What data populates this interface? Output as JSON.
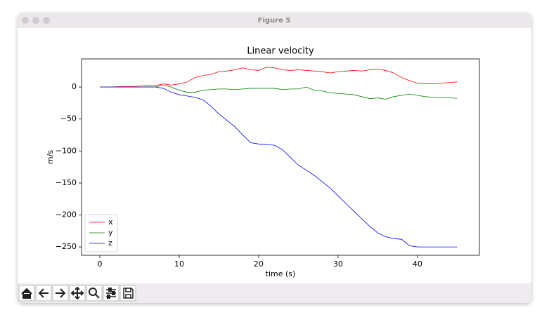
{
  "window": {
    "title": "Figure 5"
  },
  "chart_data": {
    "type": "line",
    "title": "Linear velocity",
    "x_label": "time (s)",
    "y_label": "m/s",
    "x": [
      0,
      1,
      2,
      3,
      4,
      5,
      6,
      7,
      8,
      9,
      10,
      11,
      12,
      13,
      14,
      15,
      16,
      17,
      18,
      19,
      20,
      21,
      22,
      23,
      24,
      25,
      26,
      27,
      28,
      29,
      30,
      31,
      32,
      33,
      34,
      35,
      36,
      37,
      38,
      39,
      40,
      41,
      42,
      43,
      44,
      45
    ],
    "series": [
      {
        "name": "x",
        "color": "#ff0000",
        "values": [
          0,
          0,
          0.5,
          1,
          1,
          1.5,
          2,
          2,
          5,
          3,
          5,
          8,
          15,
          18,
          20,
          24,
          25,
          27,
          30,
          27,
          26,
          31,
          30,
          27,
          26,
          27,
          26,
          25,
          24,
          22,
          24,
          25,
          26,
          25,
          27,
          28,
          26,
          22,
          15,
          10,
          6,
          5,
          5,
          6,
          7,
          8
        ]
      },
      {
        "name": "y",
        "color": "#008000",
        "values": [
          0,
          0,
          0,
          0,
          0,
          0,
          0,
          0,
          3,
          0,
          -5,
          -8,
          -8,
          -5,
          -4,
          -3,
          -3,
          -4,
          -3,
          -2,
          -2,
          -2,
          -2,
          -4,
          -3,
          -3,
          0,
          -5,
          -6,
          -9,
          -10,
          -11,
          -12,
          -15,
          -18,
          -17,
          -19,
          -15,
          -13,
          -11,
          -13,
          -15,
          -16,
          -17,
          -17,
          -17.5
        ]
      },
      {
        "name": "z",
        "color": "#0000ff",
        "values": [
          0,
          0,
          0,
          0,
          0,
          0,
          0,
          0,
          -2,
          -8,
          -12,
          -14,
          -16,
          -20,
          -30,
          -42,
          -52,
          -62,
          -75,
          -87,
          -89,
          -90,
          -91,
          -98,
          -110,
          -122,
          -130,
          -138,
          -148,
          -158,
          -170,
          -182,
          -194,
          -206,
          -218,
          -228,
          -234,
          -237,
          -238,
          -248,
          -250,
          -250,
          -250,
          -250,
          -250,
          -250
        ]
      }
    ],
    "xlim": [
      -2.3,
      47.8
    ],
    "xticks": [
      0,
      10,
      20,
      30,
      40
    ],
    "ylim": [
      -263,
      44
    ],
    "yticks": [
      {
        "value": -250,
        "label": "−250"
      },
      {
        "value": -200,
        "label": "−200"
      },
      {
        "value": -150,
        "label": "−150"
      },
      {
        "value": -100,
        "label": "−100"
      },
      {
        "value": -50,
        "label": "−50"
      },
      0
    ],
    "legend": "lower left",
    "grid": false
  }
}
